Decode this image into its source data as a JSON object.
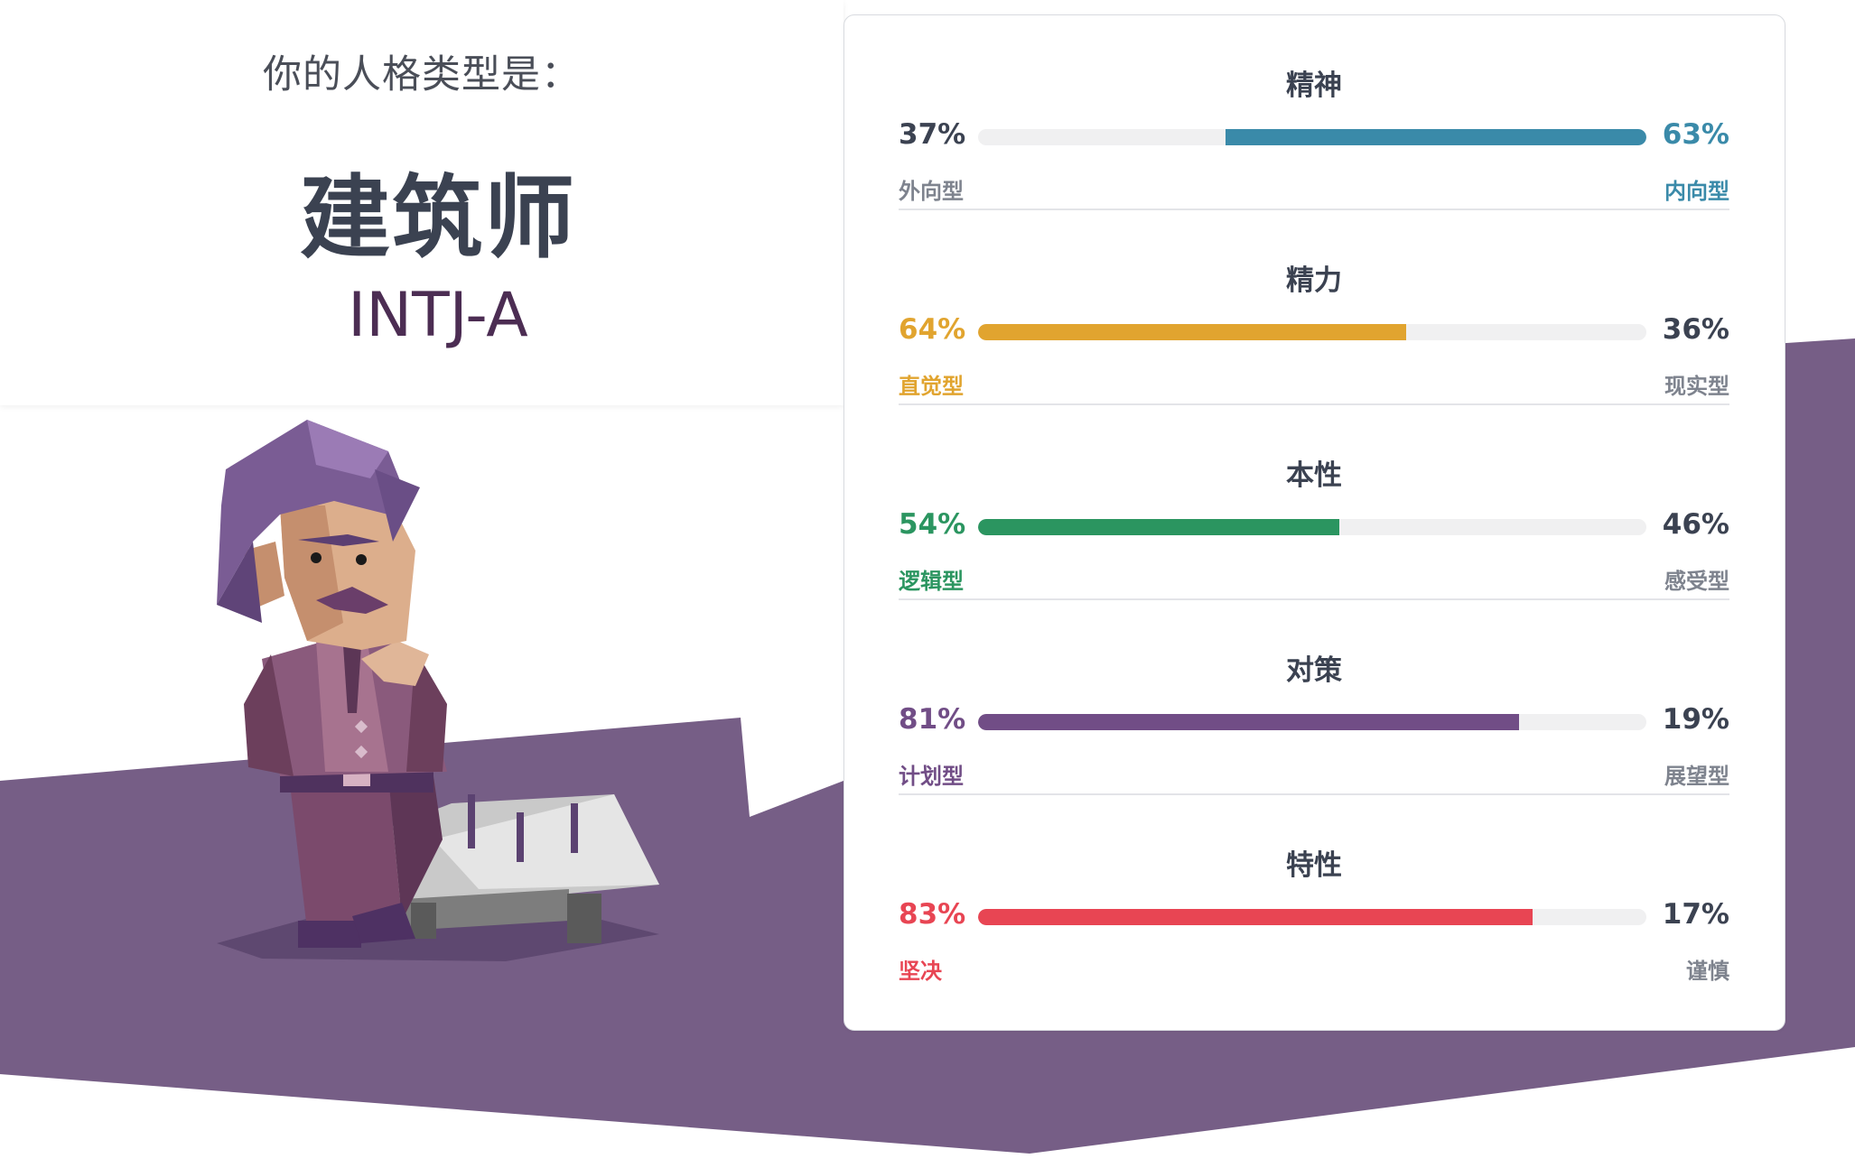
{
  "header": {
    "intro": "你的人格类型是：",
    "type_name": "建筑师",
    "type_code": "INTJ-A"
  },
  "colors": {
    "purple_band": "#765e86",
    "card_border": "#d9dbe0",
    "neutral_text": "#3b4251",
    "muted_label": "#7e838e"
  },
  "traits": [
    {
      "title": "精神",
      "left_pct": "37%",
      "right_pct": "63%",
      "left_label": "外向型",
      "right_label": "内向型",
      "dominant": "right",
      "dominant_value": 63,
      "color": "#3a8aa9"
    },
    {
      "title": "精力",
      "left_pct": "64%",
      "right_pct": "36%",
      "left_label": "直觉型",
      "right_label": "现实型",
      "dominant": "left",
      "dominant_value": 64,
      "color": "#e1a42f"
    },
    {
      "title": "本性",
      "left_pct": "54%",
      "right_pct": "46%",
      "left_label": "逻辑型",
      "right_label": "感受型",
      "dominant": "left",
      "dominant_value": 54,
      "color": "#2b9560"
    },
    {
      "title": "对策",
      "left_pct": "81%",
      "right_pct": "19%",
      "left_label": "计划型",
      "right_label": "展望型",
      "dominant": "left",
      "dominant_value": 81,
      "color": "#714d86"
    },
    {
      "title": "特性",
      "left_pct": "83%",
      "right_pct": "17%",
      "left_label": "坚决",
      "right_label": "谨慎",
      "dominant": "left",
      "dominant_value": 83,
      "color": "#e84553"
    }
  ]
}
